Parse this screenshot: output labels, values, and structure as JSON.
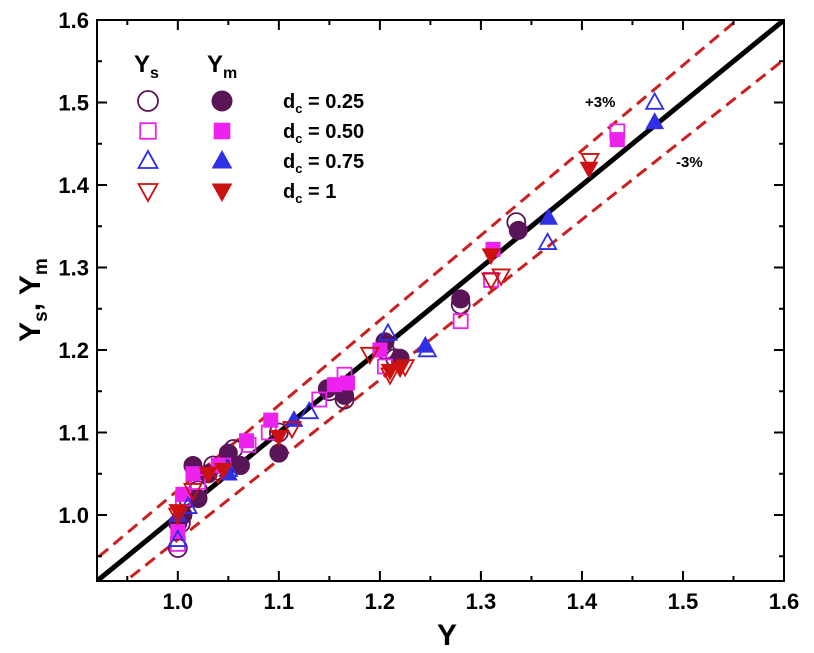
{
  "chart_data": {
    "type": "scatter",
    "xlabel": "Y",
    "ylabel_main": "Y",
    "ylabel_sub1": "s",
    "ylabel_sep": ", ",
    "ylabel_sub2": "m",
    "xlim": [
      0.92,
      1.6
    ],
    "ylim": [
      0.92,
      1.6
    ],
    "xticks": [
      1.0,
      1.1,
      1.2,
      1.3,
      1.4,
      1.5,
      1.6
    ],
    "xtick_labels": [
      "1.0",
      "1.1",
      "1.2",
      "1.3",
      "1.4",
      "1.5",
      "1.6"
    ],
    "yticks": [
      1.0,
      1.1,
      1.2,
      1.3,
      1.4,
      1.5,
      1.6
    ],
    "ytick_labels": [
      "1.0",
      "1.1",
      "1.2",
      "1.3",
      "1.4",
      "1.5",
      "1.6"
    ],
    "lines": [
      {
        "name": "identity",
        "slope": 1.0,
        "style": "solid",
        "color": "#000000"
      },
      {
        "name": "plus3",
        "slope": 1.03,
        "style": "dashed",
        "color": "#cc1f1f"
      },
      {
        "name": "minus3",
        "slope": 0.97,
        "style": "dashed",
        "color": "#cc1f1f"
      }
    ],
    "annotations": [
      {
        "text": "+3%",
        "x": 1.46,
        "y": 1.5
      },
      {
        "text": "-3%",
        "x": 1.515,
        "y": 1.435
      }
    ],
    "legend": {
      "col1_main": "Y",
      "col1_sub": "s",
      "col2_main": "Y",
      "col2_sub": "m",
      "entries": [
        {
          "label_main": "d",
          "label_sub": "c",
          "label_rest": " = 0.25",
          "shape": "circle",
          "color": "#5a1458"
        },
        {
          "label_main": "d",
          "label_sub": "c",
          "label_rest": " = 0.50",
          "shape": "square",
          "color": "#ee22ee"
        },
        {
          "label_main": "d",
          "label_sub": "c",
          "label_rest": " = 0.75",
          "shape": "triangle-up",
          "color": "#2f2fe6"
        },
        {
          "label_main": "d",
          "label_sub": "c",
          "label_rest": " = 1",
          "shape": "triangle-down",
          "color": "#cc1111"
        }
      ]
    },
    "series": [
      {
        "name": "Ys d_c = 0.25",
        "shape": "circle",
        "filled": false,
        "color": "#5a1458",
        "points": [
          [
            1.0,
            0.96
          ],
          [
            1.003,
            0.99
          ],
          [
            1.01,
            1.02
          ],
          [
            1.02,
            1.03
          ],
          [
            1.035,
            1.06
          ],
          [
            1.055,
            1.08
          ],
          [
            1.1,
            1.1
          ],
          [
            1.15,
            1.15
          ],
          [
            1.165,
            1.14
          ],
          [
            1.205,
            1.2
          ],
          [
            1.215,
            1.19
          ],
          [
            1.28,
            1.255
          ],
          [
            1.335,
            1.355
          ]
        ]
      },
      {
        "name": "Ym d_c = 0.25",
        "shape": "circle",
        "filled": true,
        "color": "#5a1458",
        "points": [
          [
            1.0,
            0.99
          ],
          [
            1.005,
            1.0
          ],
          [
            1.015,
            1.06
          ],
          [
            1.02,
            1.02
          ],
          [
            1.03,
            1.05
          ],
          [
            1.05,
            1.075
          ],
          [
            1.062,
            1.06
          ],
          [
            1.1,
            1.075
          ],
          [
            1.148,
            1.153
          ],
          [
            1.165,
            1.145
          ],
          [
            1.205,
            1.21
          ],
          [
            1.22,
            1.19
          ],
          [
            1.28,
            1.262
          ],
          [
            1.337,
            1.345
          ]
        ]
      },
      {
        "name": "Ys d_c = 0.50",
        "shape": "square",
        "filled": false,
        "color": "#ee22ee",
        "points": [
          [
            1.0,
            0.965
          ],
          [
            1.005,
            1.02
          ],
          [
            1.02,
            1.04
          ],
          [
            1.045,
            1.06
          ],
          [
            1.07,
            1.085
          ],
          [
            1.09,
            1.1
          ],
          [
            1.14,
            1.14
          ],
          [
            1.165,
            1.17
          ],
          [
            1.205,
            1.18
          ],
          [
            1.28,
            1.235
          ],
          [
            1.31,
            1.285
          ],
          [
            1.435,
            1.465
          ]
        ]
      },
      {
        "name": "Ym d_c = 0.50",
        "shape": "square",
        "filled": true,
        "color": "#ee22ee",
        "points": [
          [
            1.0,
            0.98
          ],
          [
            1.005,
            1.025
          ],
          [
            1.015,
            1.05
          ],
          [
            1.04,
            1.06
          ],
          [
            1.068,
            1.09
          ],
          [
            1.092,
            1.115
          ],
          [
            1.155,
            1.158
          ],
          [
            1.168,
            1.16
          ],
          [
            1.2,
            1.2
          ],
          [
            1.312,
            1.322
          ],
          [
            1.435,
            1.455
          ]
        ]
      },
      {
        "name": "Ys d_c = 0.75",
        "shape": "triangle-up",
        "filled": false,
        "color": "#2f2fe6",
        "points": [
          [
            1.0,
            0.97
          ],
          [
            1.01,
            1.01
          ],
          [
            1.05,
            1.055
          ],
          [
            1.13,
            1.125
          ],
          [
            1.208,
            1.22
          ],
          [
            1.247,
            1.2
          ],
          [
            1.366,
            1.33
          ],
          [
            1.472,
            1.5
          ]
        ]
      },
      {
        "name": "Ym d_c = 0.75",
        "shape": "triangle-up",
        "filled": true,
        "color": "#2f2fe6",
        "points": [
          [
            1.0,
            1.0
          ],
          [
            1.05,
            1.05
          ],
          [
            1.115,
            1.115
          ],
          [
            1.245,
            1.205
          ],
          [
            1.367,
            1.36
          ],
          [
            1.472,
            1.476
          ]
        ]
      },
      {
        "name": "Ys d_c = 1",
        "shape": "triangle-down",
        "filled": false,
        "color": "#cc1111",
        "points": [
          [
            1.0,
            1.0
          ],
          [
            1.015,
            1.03
          ],
          [
            1.04,
            1.05
          ],
          [
            1.113,
            1.105
          ],
          [
            1.19,
            1.195
          ],
          [
            1.21,
            1.17
          ],
          [
            1.225,
            1.18
          ],
          [
            1.31,
            1.285
          ],
          [
            1.32,
            1.29
          ],
          [
            1.408,
            1.43
          ]
        ]
      },
      {
        "name": "Ym d_c = 1",
        "shape": "triangle-down",
        "filled": true,
        "color": "#cc1111",
        "points": [
          [
            1.0,
            1.005
          ],
          [
            1.03,
            1.05
          ],
          [
            1.045,
            1.055
          ],
          [
            1.1,
            1.095
          ],
          [
            1.21,
            1.175
          ],
          [
            1.22,
            1.178
          ],
          [
            1.31,
            1.315
          ],
          [
            1.407,
            1.42
          ]
        ]
      }
    ]
  }
}
